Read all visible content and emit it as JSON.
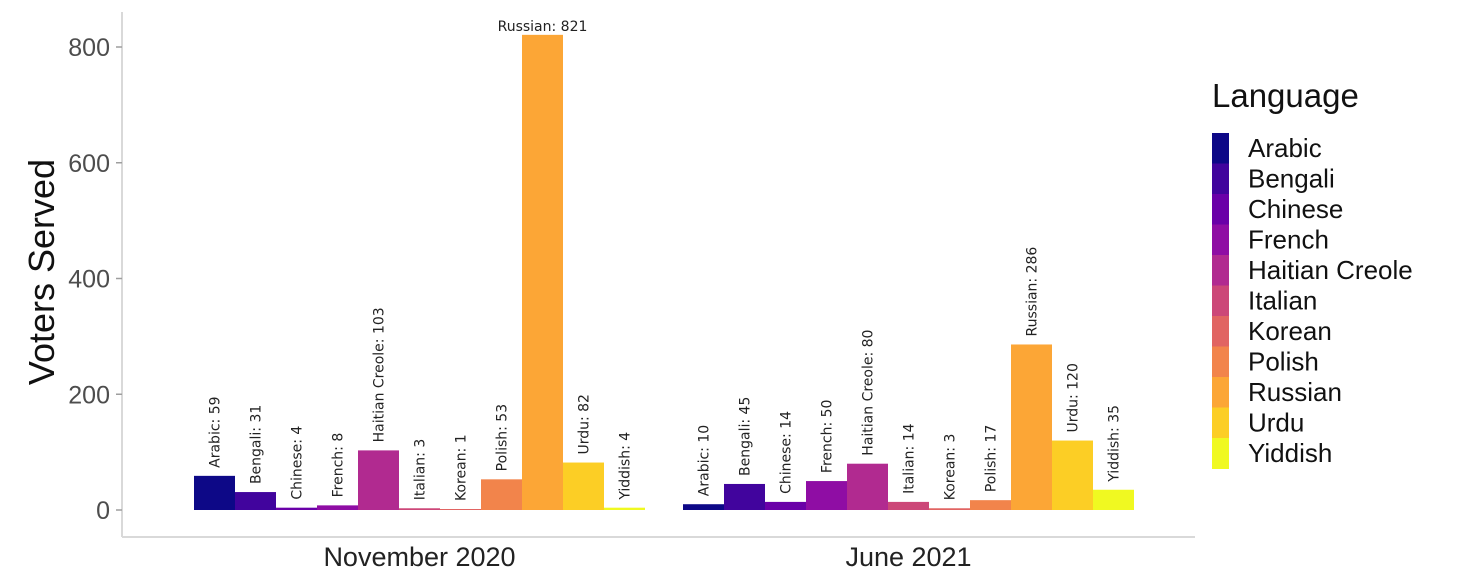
{
  "chart_data": {
    "type": "bar",
    "title": "",
    "xlabel": "",
    "ylabel": "Voters Served",
    "ylim": [
      0,
      850
    ],
    "yticks": [
      0,
      200,
      400,
      600,
      800
    ],
    "grid": false,
    "legend_position": "right",
    "legend_title": "Language",
    "categories": [
      "November 2020",
      "June 2021"
    ],
    "series": [
      {
        "name": "Arabic",
        "color": "#0d0887",
        "values": [
          59,
          10
        ],
        "labels": [
          "Arabic: 59",
          "Arabic: 10"
        ]
      },
      {
        "name": "Bengali",
        "color": "#41049d",
        "values": [
          31,
          45
        ],
        "labels": [
          "Bengali: 31",
          "Bengali: 45"
        ]
      },
      {
        "name": "Chinese",
        "color": "#6a00a8",
        "values": [
          4,
          14
        ],
        "labels": [
          "Chinese: 4",
          "Chinese: 14"
        ]
      },
      {
        "name": "French",
        "color": "#8f0da4",
        "values": [
          8,
          50
        ],
        "labels": [
          "French: 8",
          "French: 50"
        ]
      },
      {
        "name": "Haitian Creole",
        "color": "#b12a90",
        "values": [
          103,
          80
        ],
        "labels": [
          "Haitian Creole: 103",
          "Haitian Creole: 80"
        ]
      },
      {
        "name": "Italian",
        "color": "#cc4778",
        "values": [
          3,
          14
        ],
        "labels": [
          "Italian: 3",
          "Italian: 14"
        ]
      },
      {
        "name": "Korean",
        "color": "#e16462",
        "values": [
          1,
          3
        ],
        "labels": [
          "Korean: 1",
          "Korean: 3"
        ]
      },
      {
        "name": "Polish",
        "color": "#f2844b",
        "values": [
          53,
          17
        ],
        "labels": [
          "Polish: 53",
          "Polish: 17"
        ]
      },
      {
        "name": "Russian",
        "color": "#fca636",
        "values": [
          821,
          286
        ],
        "labels": [
          "Russian: 821",
          "Russian: 286"
        ]
      },
      {
        "name": "Urdu",
        "color": "#fcce25",
        "values": [
          82,
          120
        ],
        "labels": [
          "Urdu: 82",
          "Urdu: 120"
        ]
      },
      {
        "name": "Yiddish",
        "color": "#f0f921",
        "values": [
          4,
          35
        ],
        "labels": [
          "Yiddish: 4",
          "Yiddish: 35"
        ]
      }
    ]
  }
}
